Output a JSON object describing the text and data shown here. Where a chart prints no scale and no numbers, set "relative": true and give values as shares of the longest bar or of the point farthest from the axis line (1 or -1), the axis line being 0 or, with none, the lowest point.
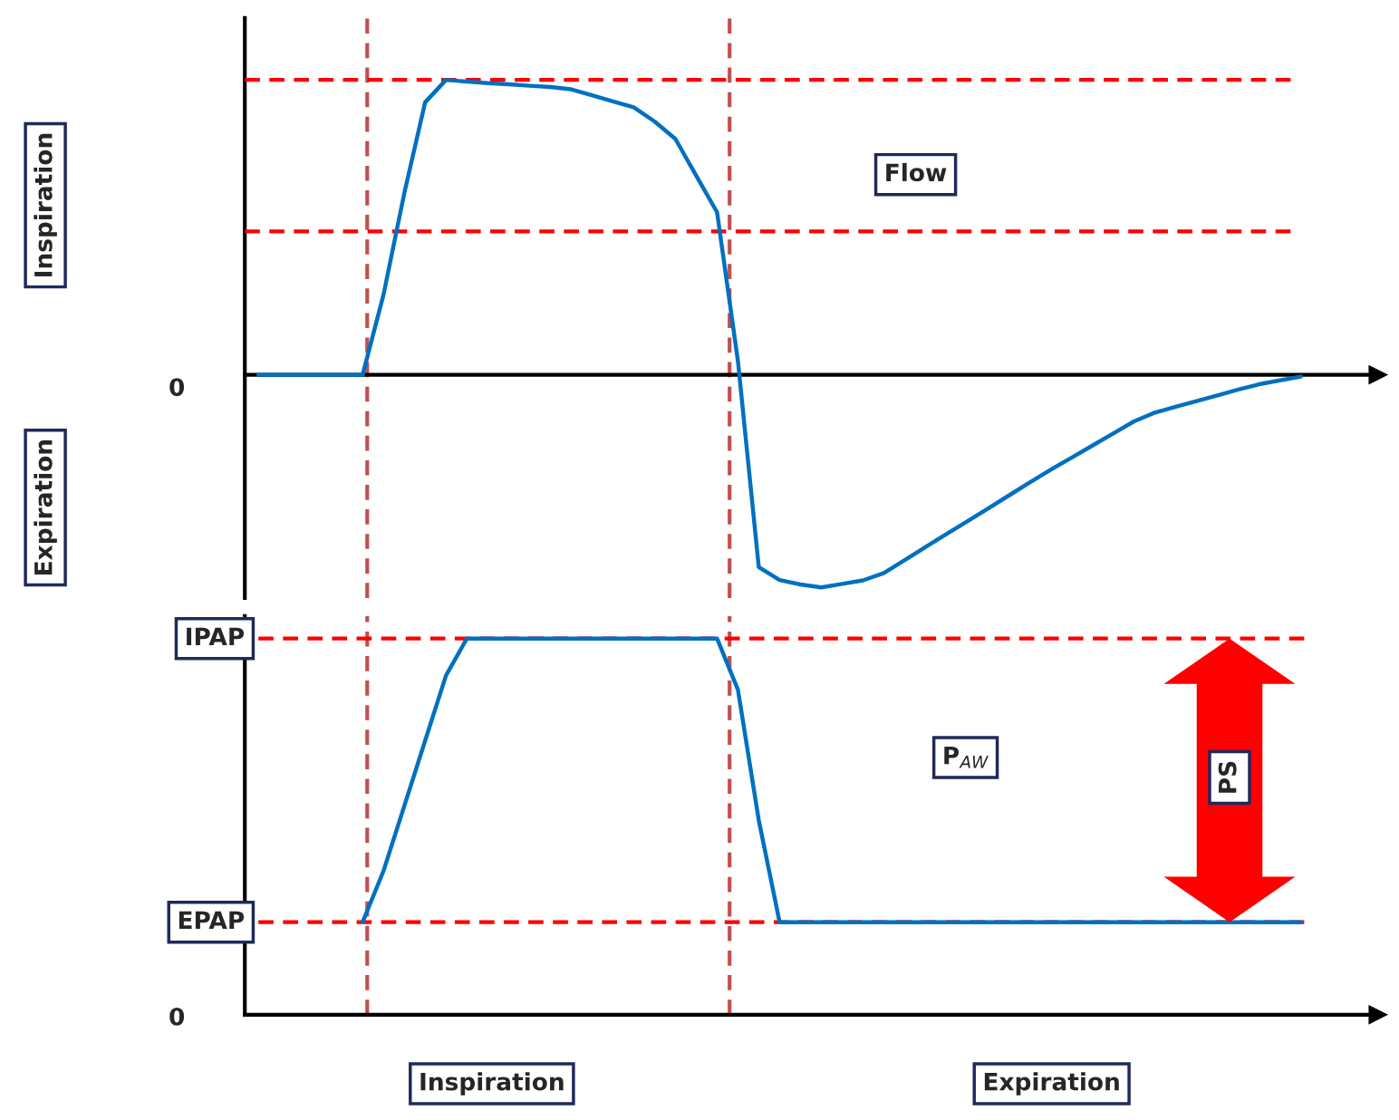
{
  "chart_data": [
    {
      "type": "line",
      "relative": true,
      "line_style": "solid",
      "marker": "none",
      "legend": false,
      "categories": [
        null,
        null,
        null,
        null,
        null,
        null,
        null,
        null,
        null,
        null,
        null,
        null,
        null,
        null,
        null,
        null,
        null,
        null,
        null,
        null,
        null,
        null,
        null,
        null,
        null,
        null,
        null,
        null,
        null,
        null,
        null,
        null,
        null,
        null,
        null,
        null,
        null,
        null,
        null,
        null,
        null,
        null,
        null,
        null,
        null,
        null,
        null,
        null,
        null,
        null,
        null
      ],
      "series": [
        {
          "color": "#0070c0",
          "values": [
            0,
            0,
            0,
            0,
            0,
            0,
            0.271,
            0.616,
            0.924,
            1,
            0.994,
            0.989,
            0.985,
            0.98,
            0.976,
            0.968,
            0.948,
            0.927,
            0.907,
            0.859,
            0.8,
            0.675,
            0.551,
            0.047,
            -0.652,
            -0.696,
            -0.711,
            -0.721,
            -0.709,
            -0.697,
            -0.672,
            -0.628,
            -0.584,
            -0.54,
            -0.497,
            -0.453,
            -0.409,
            -0.365,
            -0.322,
            -0.281,
            -0.24,
            -0.199,
            -0.158,
            -0.128,
            -0.108,
            -0.089,
            -0.07,
            -0.05,
            -0.032,
            -0.019,
            -0.006
          ]
        }
      ],
      "ref_lines": [
        {
          "axis": "y",
          "value": 1,
          "color": "#ff0000",
          "line_style": "dashed"
        },
        {
          "axis": "y",
          "value": 0.486,
          "color": "#ff0000",
          "line_style": "dashed"
        }
      ],
      "annotations": [
        "Flow",
        "Inspiration",
        "Expiration",
        "0"
      ]
    },
    {
      "type": "line",
      "relative": true,
      "line_style": "solid",
      "marker": "none",
      "legend": false,
      "categories": [
        null,
        null,
        null,
        null,
        null,
        null,
        null,
        null,
        null,
        null,
        null,
        null,
        null,
        null,
        null,
        null,
        null,
        null,
        null,
        null,
        null,
        null,
        null,
        null,
        null,
        null,
        null,
        null,
        null,
        null,
        null,
        null,
        null,
        null,
        null,
        null,
        null,
        null,
        null,
        null,
        null,
        null,
        null,
        null,
        null,
        null,
        null,
        null,
        null,
        null,
        null
      ],
      "series": [
        {
          "color": "#0070c0",
          "values": [
            null,
            null,
            null,
            null,
            null,
            0.246,
            0.382,
            0.555,
            0.729,
            0.902,
            1,
            1,
            1,
            1,
            1,
            1,
            1,
            1,
            1,
            1,
            1,
            1,
            1,
            0.864,
            0.517,
            0.246,
            0.246,
            0.246,
            0.246,
            0.246,
            0.246,
            0.246,
            0.246,
            0.246,
            0.246,
            0.246,
            0.246,
            0.246,
            0.246,
            0.246,
            0.246,
            0.246,
            0.246,
            0.246,
            0.246,
            0.246,
            0.246,
            0.246,
            0.246,
            0.246,
            0.246
          ]
        }
      ],
      "ref_lines": [
        {
          "axis": "y",
          "value": 1,
          "label": "IPAP",
          "color": "#ff0000",
          "line_style": "dashed"
        },
        {
          "axis": "y",
          "value": 0.246,
          "label": "EPAP",
          "color": "#ff0000",
          "line_style": "dashed"
        }
      ],
      "annotations": [
        "P$_{AW}$",
        "PS",
        "Inspiration",
        "Expiration",
        "0"
      ]
    }
  ]
}
